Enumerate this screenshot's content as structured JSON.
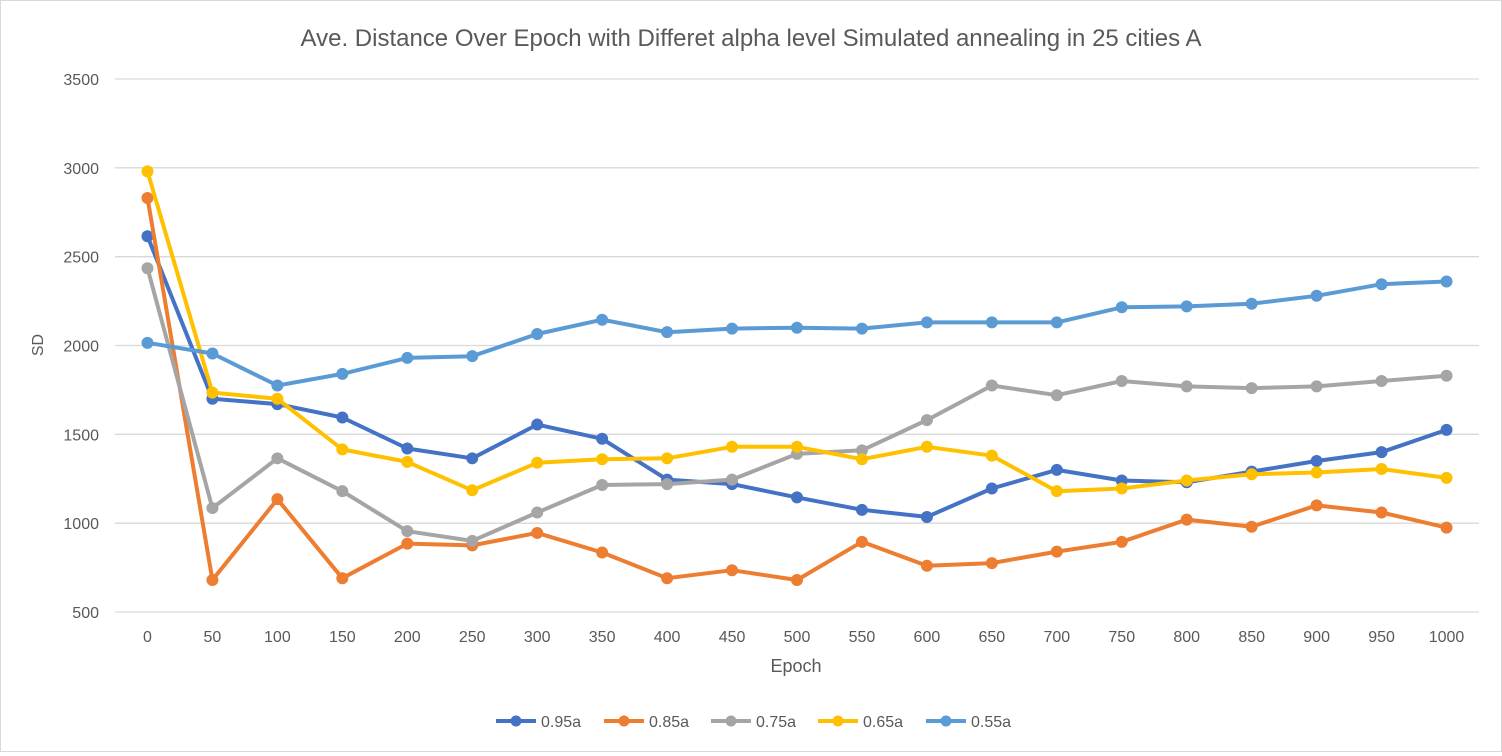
{
  "chart_data": {
    "type": "line",
    "title": "Ave. Distance Over Epoch with Differet alpha level Simulated annealing in 25 cities A",
    "xlabel": "Epoch",
    "ylabel": "SD",
    "ylim": [
      500,
      3500
    ],
    "yticks": [
      500,
      1000,
      1500,
      2000,
      2500,
      3000,
      3500
    ],
    "categories": [
      "0",
      "50",
      "100",
      "150",
      "200",
      "250",
      "300",
      "350",
      "400",
      "450",
      "500",
      "550",
      "600",
      "650",
      "700",
      "750",
      "800",
      "850",
      "900",
      "950",
      "1000"
    ],
    "grid": "horizontal",
    "legend": "bottom",
    "series": [
      {
        "name": "0.95a",
        "color": "#4472C4",
        "values": [
          2615,
          1700,
          1670,
          1595,
          1420,
          1365,
          1555,
          1475,
          1245,
          1220,
          1145,
          1075,
          1035,
          1195,
          1300,
          1240,
          1230,
          1290,
          1350,
          1400,
          1525
        ]
      },
      {
        "name": "0.85a",
        "color": "#ED7D31",
        "values": [
          2830,
          680,
          1135,
          690,
          885,
          875,
          945,
          835,
          690,
          735,
          680,
          895,
          760,
          775,
          840,
          895,
          1020,
          980,
          1100,
          1060,
          975
        ]
      },
      {
        "name": "0.75a",
        "color": "#A5A5A5",
        "values": [
          2435,
          1085,
          1365,
          1180,
          955,
          900,
          1060,
          1215,
          1220,
          1245,
          1390,
          1410,
          1580,
          1775,
          1720,
          1800,
          1770,
          1760,
          1770,
          1800,
          1830
        ]
      },
      {
        "name": "0.65a",
        "color": "#FFC000",
        "values": [
          2980,
          1735,
          1700,
          1415,
          1345,
          1185,
          1340,
          1360,
          1365,
          1430,
          1430,
          1360,
          1430,
          1380,
          1180,
          1195,
          1240,
          1275,
          1285,
          1305,
          1255
        ]
      },
      {
        "name": "0.55a",
        "color": "#5B9BD5",
        "values": [
          2015,
          1955,
          1775,
          1840,
          1930,
          1940,
          2065,
          2145,
          2075,
          2095,
          2100,
          2095,
          2130,
          2130,
          2130,
          2215,
          2220,
          2235,
          2280,
          2345,
          2360
        ]
      }
    ]
  }
}
